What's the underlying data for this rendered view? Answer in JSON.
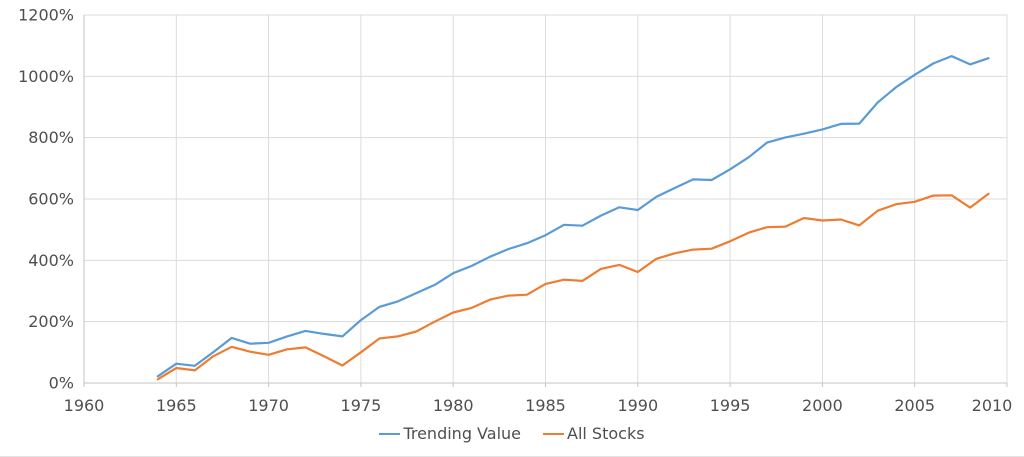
{
  "chart_data": {
    "type": "line",
    "title": "",
    "xlabel": "",
    "ylabel": "",
    "xlim": [
      1960,
      2010
    ],
    "ylim": [
      0,
      1200
    ],
    "x_ticks": [
      1960,
      1965,
      1970,
      1975,
      1980,
      1985,
      1990,
      1995,
      2000,
      2005,
      2010
    ],
    "y_ticks": [
      0,
      200,
      400,
      600,
      800,
      1000,
      1200
    ],
    "y_tick_suffix": "%",
    "grid": true,
    "legend_position": "bottom",
    "x": [
      1964,
      1965,
      1966,
      1967,
      1968,
      1969,
      1970,
      1971,
      1972,
      1973,
      1974,
      1975,
      1976,
      1977,
      1978,
      1979,
      1980,
      1981,
      1982,
      1983,
      1984,
      1985,
      1986,
      1987,
      1988,
      1989,
      1990,
      1991,
      1992,
      1993,
      1994,
      1995,
      1996,
      1997,
      1998,
      1999,
      2000,
      2001,
      2002,
      2003,
      2004,
      2005,
      2006,
      2007,
      2008,
      2009
    ],
    "series": [
      {
        "name": "Trending Value",
        "color": "#5B9BD5",
        "values": [
          22,
          63,
          56,
          100,
          147,
          128,
          131,
          152,
          170,
          160,
          152,
          205,
          248,
          266,
          293,
          320,
          358,
          382,
          412,
          437,
          456,
          482,
          516,
          513,
          546,
          573,
          564,
          607,
          636,
          664,
          662,
          697,
          736,
          784,
          801,
          813,
          827,
          845,
          846,
          915,
          965,
          1005,
          1042,
          1066,
          1039,
          1059
        ]
      },
      {
        "name": "All Stocks",
        "color": "#ED7D31",
        "values": [
          12,
          49,
          41,
          87,
          118,
          102,
          92,
          110,
          116,
          87,
          57,
          100,
          145,
          152,
          168,
          200,
          230,
          245,
          272,
          285,
          288,
          323,
          337,
          333,
          372,
          385,
          362,
          405,
          423,
          435,
          438,
          462,
          490,
          508,
          510,
          538,
          530,
          533,
          514,
          562,
          583,
          591,
          611,
          612,
          572,
          617
        ]
      }
    ]
  },
  "colors": {
    "gridline": "#DBDBDB",
    "axis": "#C3C3C3",
    "tick_text": "#4F4F4F",
    "background": "#FFFFFF"
  }
}
